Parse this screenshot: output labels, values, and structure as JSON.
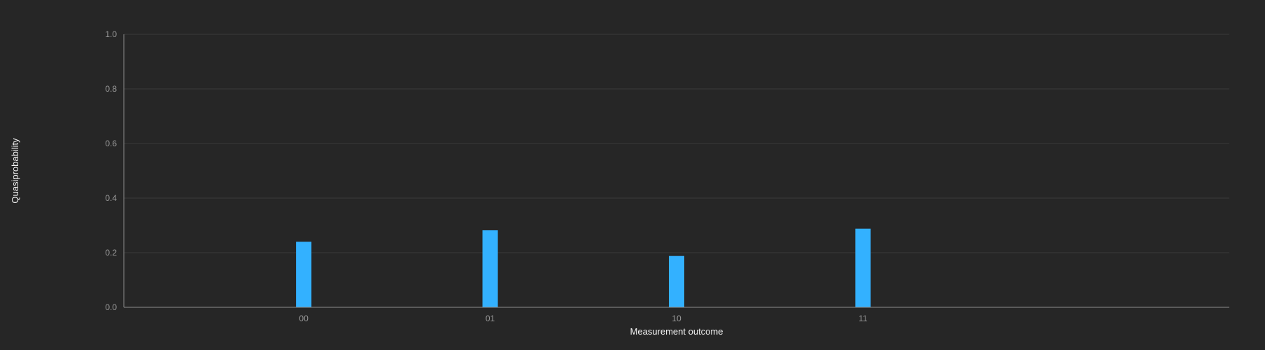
{
  "chart_data": {
    "type": "bar",
    "categories": [
      "00",
      "01",
      "10",
      "11"
    ],
    "values": [
      0.24,
      0.282,
      0.188,
      0.288
    ],
    "xlabel": "Measurement outcome",
    "ylabel": "Quasiprobability",
    "ylim": [
      0,
      1.0
    ],
    "yticks": [
      "0.0",
      "0.2",
      "0.4",
      "0.6",
      "0.8",
      "1.0"
    ],
    "grid": true,
    "colors": {
      "bar": "#33b1ff",
      "background": "#262626"
    }
  }
}
